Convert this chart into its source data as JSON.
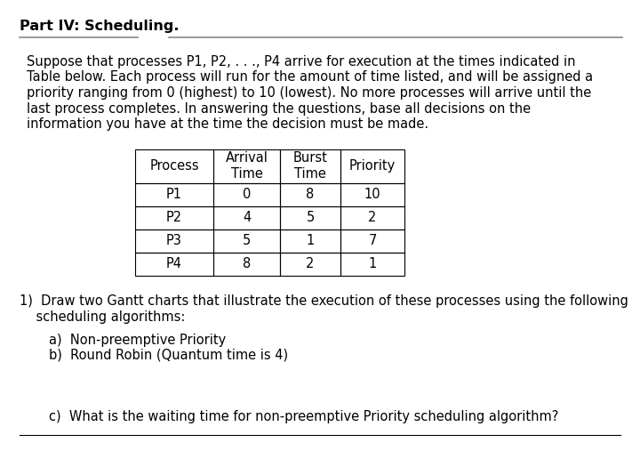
{
  "title": "Part IV: Scheduling.",
  "paragraph_lines": [
    "Suppose that processes P1, P2, . . ., P4 arrive for execution at the times indicated in",
    "Table below. Each process will run for the amount of time listed, and will be assigned a",
    "priority ranging from 0 (highest) to 10 (lowest). No more processes will arrive until the",
    "last process completes. In answering the questions, base all decisions on the",
    "information you have at the time the decision must be made."
  ],
  "table_headers": [
    "Process",
    "Arrival\nTime",
    "Burst\nTime",
    "Priority"
  ],
  "table_data": [
    [
      "P1",
      "0",
      "8",
      "10"
    ],
    [
      "P2",
      "4",
      "5",
      "2"
    ],
    [
      "P3",
      "5",
      "1",
      "7"
    ],
    [
      "P4",
      "8",
      "2",
      "1"
    ]
  ],
  "question1_lines": [
    "1)  Draw two Gantt charts that illustrate the execution of these processes using the following",
    "    scheduling algorithms:"
  ],
  "sub_a": "a)  Non-preemptive Priority",
  "sub_b": "b)  Round Robin (Quantum time is 4)",
  "sub_c": "c)  What is the waiting time for non-preemptive Priority scheduling algorithm?",
  "bg_color": "#ffffff",
  "text_color": "#000000",
  "line_color": "#888888",
  "title_fontsize": 11.5,
  "body_fontsize": 10.5,
  "table_fontsize": 10.5
}
